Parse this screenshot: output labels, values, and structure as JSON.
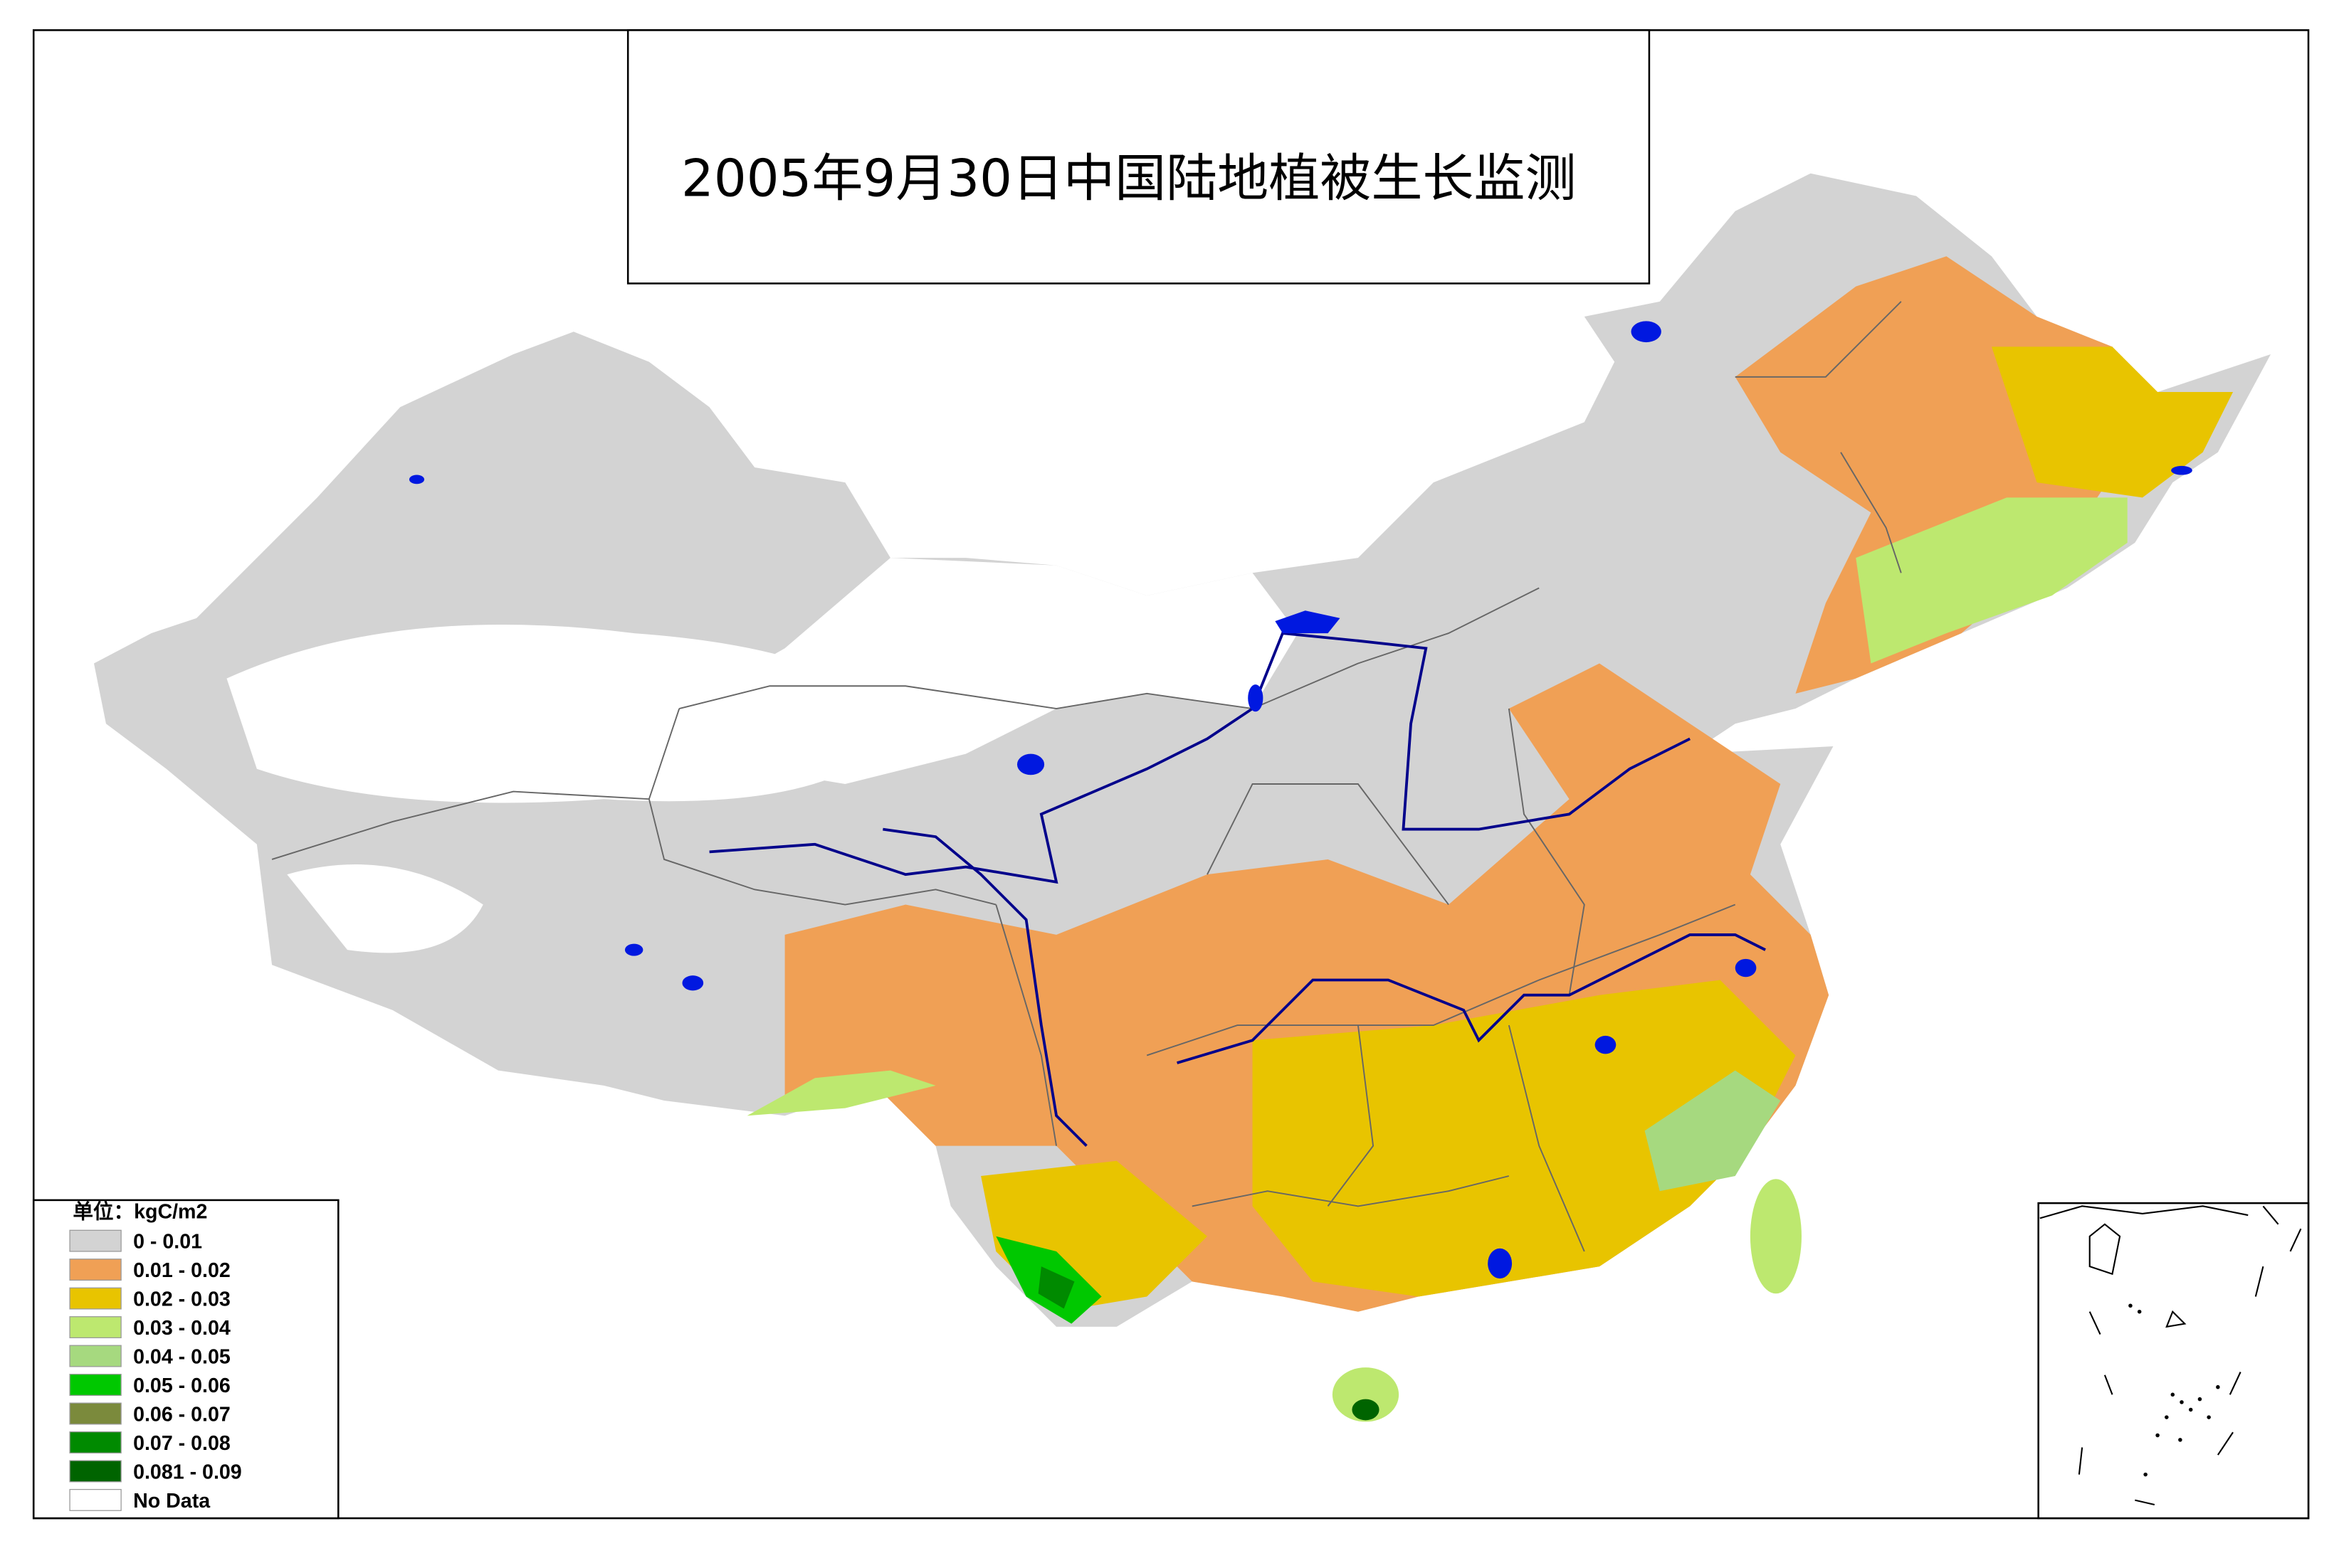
{
  "title": "2005年9月30日中国陆地植被生长监测",
  "legend": {
    "title": "单位：kgC/m2",
    "items": [
      {
        "label": "0 - 0.01",
        "color": "#d3d3d3"
      },
      {
        "label": "0.01 - 0.02",
        "color": "#f0a055"
      },
      {
        "label": "0.02 - 0.03",
        "color": "#e8c400"
      },
      {
        "label": "0.03 - 0.04",
        "color": "#bde86f"
      },
      {
        "label": "0.04 - 0.05",
        "color": "#a6d97f"
      },
      {
        "label": "0.05 - 0.06",
        "color": "#00c800"
      },
      {
        "label": "0.06 - 0.07",
        "color": "#7b8a3c"
      },
      {
        "label": "0.07 - 0.08",
        "color": "#008a00"
      },
      {
        "label": "0.081 - 0.09",
        "color": "#006400"
      },
      {
        "label": "No Data",
        "color": "#ffffff"
      }
    ]
  }
}
